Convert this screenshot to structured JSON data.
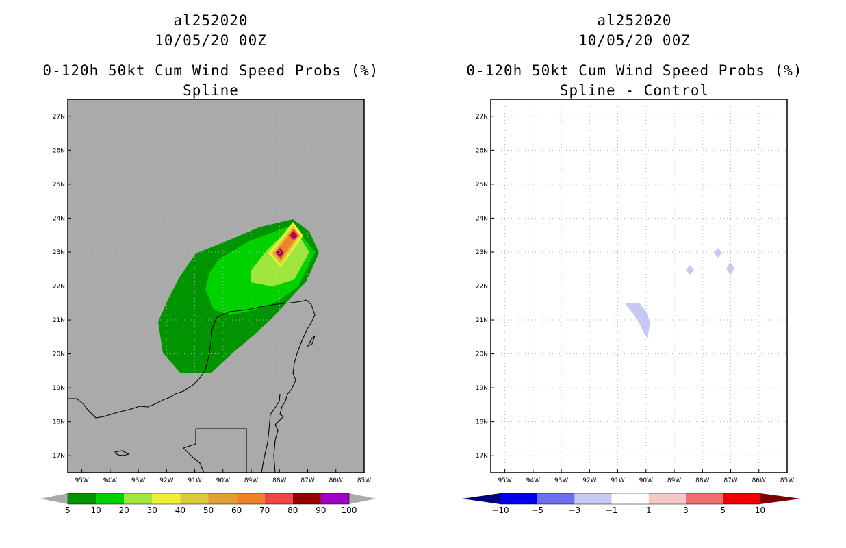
{
  "panels": [
    {
      "id": "left",
      "storm_id": "al252020",
      "date": "10/05/20 00Z",
      "product": "0-120h 50kt Cum Wind Speed Probs (%)",
      "subtitle": "Spline"
    },
    {
      "id": "right",
      "storm_id": "al252020",
      "date": "10/05/20 00Z",
      "product": "0-120h 50kt Cum Wind Speed Probs (%)",
      "subtitle": "Spline - Control"
    }
  ],
  "axes": {
    "lon_labels": [
      "95W",
      "94W",
      "93W",
      "92W",
      "91W",
      "90W",
      "89W",
      "88W",
      "87W",
      "86W",
      "85W"
    ],
    "lat_labels": [
      "17N",
      "18N",
      "19N",
      "20N",
      "21N",
      "22N",
      "23N",
      "24N",
      "25N",
      "26N",
      "27N"
    ],
    "lon_range": [
      -95.5,
      -85
    ],
    "lat_range": [
      16.5,
      27.5
    ]
  },
  "legend_left": {
    "labels": [
      "5",
      "10",
      "20",
      "30",
      "40",
      "50",
      "60",
      "70",
      "80",
      "90",
      "100"
    ],
    "colors": [
      "#009400",
      "#00d200",
      "#a0e63c",
      "#f0f032",
      "#dcc83c",
      "#e0a032",
      "#f08228",
      "#f04646",
      "#960000",
      "#a000c8"
    ]
  },
  "legend_right": {
    "labels": [
      "-10",
      "-5",
      "-3",
      "-1",
      "1",
      "3",
      "5",
      "10"
    ],
    "colors": [
      "#0000c8",
      "#0000f0",
      "#6e6ef0",
      "#c8c8f5",
      "#ffffff",
      "#f5c8c8",
      "#f06e6e",
      "#f00000"
    ]
  },
  "map_colors": {
    "left_bg": "#aaaaaa",
    "right_bg": "#ffffff",
    "coast": "#000000",
    "grid": "#b4b4b4"
  }
}
